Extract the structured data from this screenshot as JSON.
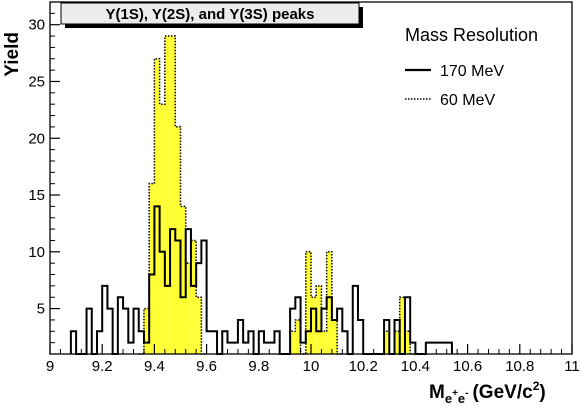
{
  "chart_data": {
    "type": "histogram",
    "title": "Υ(1S), Υ(2S), and Υ(3S) peaks",
    "xlabel": {
      "base": "M",
      "subscript": "e",
      "sub_sup1": "+",
      "subscript2": "e",
      "sub_sup2": "-",
      "unit": "(GeV/c",
      "unit_sup": "2",
      "unit_close": ")"
    },
    "ylabel": "Yield",
    "xlim": [
      9,
      11
    ],
    "ylim": [
      1,
      32
    ],
    "bin_width": 0.02,
    "x_ticks": [
      9,
      9.2,
      9.4,
      9.6,
      9.8,
      10,
      10.2,
      10.4,
      10.6,
      10.8,
      11
    ],
    "x_tick_labels": [
      "9",
      "9.2",
      "9.4",
      "9.6",
      "9.8",
      "10",
      "10.2",
      "10.4",
      "10.6",
      "10.8",
      "11"
    ],
    "y_ticks": [
      5,
      10,
      15,
      20,
      25,
      30
    ],
    "y_tick_labels": [
      "5",
      "10",
      "15",
      "20",
      "25",
      "30"
    ],
    "legend": {
      "title": "Mass Resolution",
      "position": "top-right",
      "entries": [
        {
          "label": "170 MeV",
          "style": "solid"
        },
        {
          "label": "60 MeV",
          "style": "dotted"
        }
      ]
    },
    "series": [
      {
        "name": "170 MeV",
        "style": "solid-outline",
        "bins": [
          {
            "x0": 9.08,
            "y": 3
          },
          {
            "x0": 9.1,
            "y": 1
          },
          {
            "x0": 9.12,
            "y": 1
          },
          {
            "x0": 9.14,
            "y": 5
          },
          {
            "x0": 9.16,
            "y": 1
          },
          {
            "x0": 9.18,
            "y": 3
          },
          {
            "x0": 9.2,
            "y": 7
          },
          {
            "x0": 9.22,
            "y": 5
          },
          {
            "x0": 9.24,
            "y": 1
          },
          {
            "x0": 9.26,
            "y": 6
          },
          {
            "x0": 9.28,
            "y": 5
          },
          {
            "x0": 9.3,
            "y": 2
          },
          {
            "x0": 9.32,
            "y": 5
          },
          {
            "x0": 9.34,
            "y": 3
          },
          {
            "x0": 9.36,
            "y": 2
          },
          {
            "x0": 9.38,
            "y": 8
          },
          {
            "x0": 9.4,
            "y": 14
          },
          {
            "x0": 9.42,
            "y": 10
          },
          {
            "x0": 9.44,
            "y": 7
          },
          {
            "x0": 9.46,
            "y": 12
          },
          {
            "x0": 9.48,
            "y": 11
          },
          {
            "x0": 9.5,
            "y": 6
          },
          {
            "x0": 9.52,
            "y": 12
          },
          {
            "x0": 9.54,
            "y": 7
          },
          {
            "x0": 9.56,
            "y": 9
          },
          {
            "x0": 9.58,
            "y": 11
          },
          {
            "x0": 9.6,
            "y": 3
          },
          {
            "x0": 9.62,
            "y": 3
          },
          {
            "x0": 9.64,
            "y": 1
          },
          {
            "x0": 9.66,
            "y": 3
          },
          {
            "x0": 9.68,
            "y": 2
          },
          {
            "x0": 9.7,
            "y": 2
          },
          {
            "x0": 9.72,
            "y": 4
          },
          {
            "x0": 9.74,
            "y": 2
          },
          {
            "x0": 9.76,
            "y": 3
          },
          {
            "x0": 9.78,
            "y": 1
          },
          {
            "x0": 9.8,
            "y": 3
          },
          {
            "x0": 9.82,
            "y": 2
          },
          {
            "x0": 9.84,
            "y": 2
          },
          {
            "x0": 9.86,
            "y": 3
          },
          {
            "x0": 9.88,
            "y": 1
          },
          {
            "x0": 9.9,
            "y": 1
          },
          {
            "x0": 9.92,
            "y": 5
          },
          {
            "x0": 9.94,
            "y": 6
          },
          {
            "x0": 9.96,
            "y": 2
          },
          {
            "x0": 9.98,
            "y": 3
          },
          {
            "x0": 10.0,
            "y": 5
          },
          {
            "x0": 10.02,
            "y": 3
          },
          {
            "x0": 10.04,
            "y": 5
          },
          {
            "x0": 10.06,
            "y": 6
          },
          {
            "x0": 10.08,
            "y": 4
          },
          {
            "x0": 10.1,
            "y": 5
          },
          {
            "x0": 10.12,
            "y": 3
          },
          {
            "x0": 10.14,
            "y": 1
          },
          {
            "x0": 10.16,
            "y": 7
          },
          {
            "x0": 10.18,
            "y": 4
          },
          {
            "x0": 10.2,
            "y": 1
          },
          {
            "x0": 10.22,
            "y": 1
          },
          {
            "x0": 10.24,
            "y": 1
          },
          {
            "x0": 10.26,
            "y": 1
          },
          {
            "x0": 10.28,
            "y": 4
          },
          {
            "x0": 10.3,
            "y": 1
          },
          {
            "x0": 10.32,
            "y": 4
          },
          {
            "x0": 10.34,
            "y": 1
          },
          {
            "x0": 10.36,
            "y": 6
          },
          {
            "x0": 10.38,
            "y": 2
          },
          {
            "x0": 10.4,
            "y": 1
          },
          {
            "x0": 10.42,
            "y": 1
          },
          {
            "x0": 10.44,
            "y": 2
          },
          {
            "x0": 10.46,
            "y": 2
          },
          {
            "x0": 10.48,
            "y": 2
          },
          {
            "x0": 10.5,
            "y": 2
          },
          {
            "x0": 10.52,
            "y": 2
          }
        ]
      },
      {
        "name": "60 MeV",
        "style": "dotted-filled",
        "fill": "#ffff33",
        "bins": [
          {
            "x0": 9.34,
            "y": 1
          },
          {
            "x0": 9.36,
            "y": 5
          },
          {
            "x0": 9.38,
            "y": 16
          },
          {
            "x0": 9.4,
            "y": 27
          },
          {
            "x0": 9.42,
            "y": 23
          },
          {
            "x0": 9.44,
            "y": 29
          },
          {
            "x0": 9.46,
            "y": 29
          },
          {
            "x0": 9.48,
            "y": 21
          },
          {
            "x0": 9.5,
            "y": 14
          },
          {
            "x0": 9.52,
            "y": 9
          },
          {
            "x0": 9.54,
            "y": 11
          },
          {
            "x0": 9.56,
            "y": 6
          },
          {
            "x0": 9.58,
            "y": 1
          },
          {
            "x0": 9.92,
            "y": 3
          },
          {
            "x0": 9.94,
            "y": 4
          },
          {
            "x0": 9.96,
            "y": 1
          },
          {
            "x0": 9.98,
            "y": 10
          },
          {
            "x0": 10.0,
            "y": 6
          },
          {
            "x0": 10.02,
            "y": 7
          },
          {
            "x0": 10.04,
            "y": 3
          },
          {
            "x0": 10.06,
            "y": 10
          },
          {
            "x0": 10.08,
            "y": 4
          },
          {
            "x0": 10.1,
            "y": 1
          },
          {
            "x0": 10.26,
            "y": 1
          },
          {
            "x0": 10.28,
            "y": 3
          },
          {
            "x0": 10.3,
            "y": 1
          },
          {
            "x0": 10.32,
            "y": 3
          },
          {
            "x0": 10.34,
            "y": 6
          },
          {
            "x0": 10.36,
            "y": 3
          },
          {
            "x0": 10.38,
            "y": 1
          }
        ]
      }
    ]
  }
}
